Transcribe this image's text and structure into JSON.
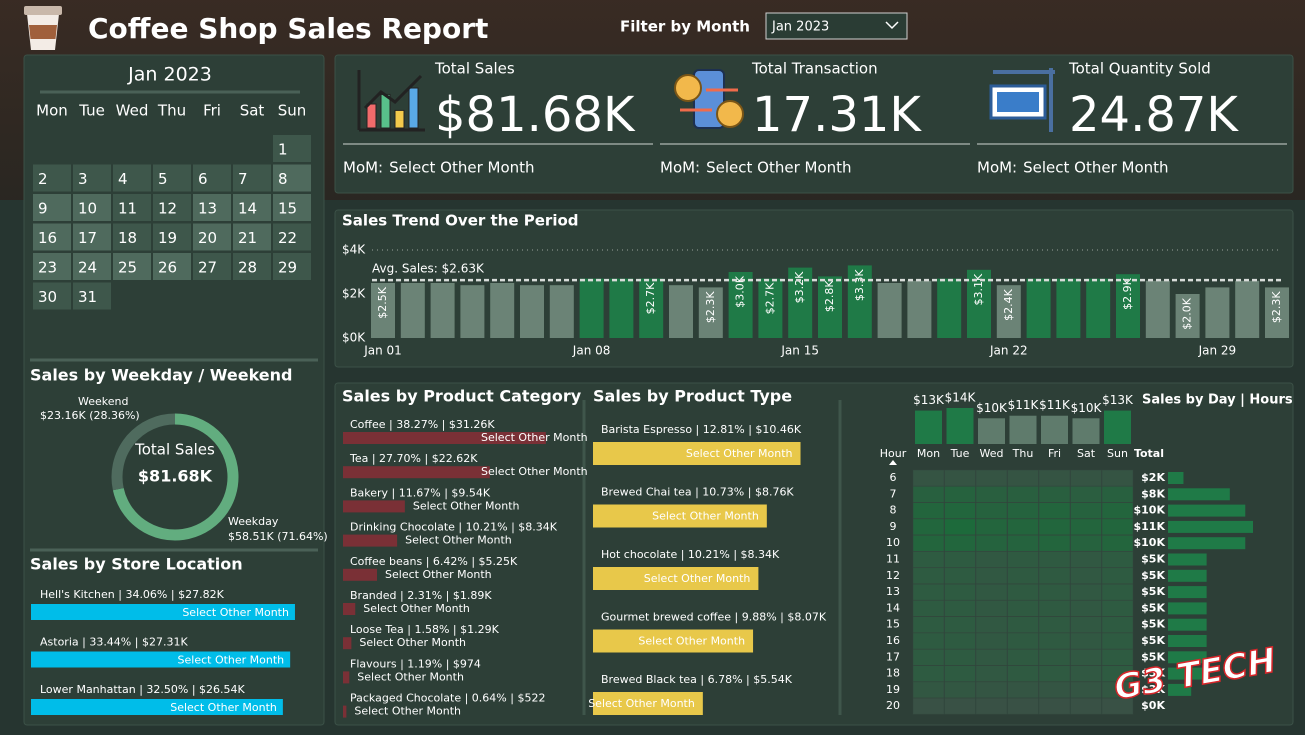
{
  "header": {
    "title": "Coffee Shop Sales Report",
    "filter_label": "Filter by Month",
    "filter_value": "Jan 2023"
  },
  "calendar": {
    "title": "Jan 2023",
    "weekdays": [
      "Mon",
      "Tue",
      "Wed",
      "Thu",
      "Fri",
      "Sat",
      "Sun"
    ],
    "days": [
      1,
      2,
      3,
      4,
      5,
      6,
      7,
      8,
      9,
      10,
      11,
      12,
      13,
      14,
      15,
      16,
      17,
      18,
      19,
      20,
      21,
      22,
      23,
      24,
      25,
      26,
      27,
      28,
      29,
      30,
      31
    ]
  },
  "kpis": [
    {
      "label": "Total Sales",
      "value": "$81.68K",
      "mom_label": "MoM:",
      "mom_value": "Select Other Month"
    },
    {
      "label": "Total Transaction",
      "value": "17.31K",
      "mom_label": "MoM:",
      "mom_value": "Select Other Month"
    },
    {
      "label": "Total Quantity Sold",
      "value": "24.87K",
      "mom_label": "MoM:",
      "mom_value": "Select Other Month"
    }
  ],
  "trend": {
    "title": "Sales Trend Over the Period",
    "categories": [
      "Jan 01",
      null,
      null,
      null,
      null,
      null,
      null,
      "Jan 08",
      null,
      null,
      null,
      null,
      null,
      null,
      "Jan 15",
      null,
      null,
      null,
      null,
      null,
      null,
      "Jan 22",
      null,
      null,
      null,
      null,
      null,
      null,
      "Jan 29",
      null,
      null
    ],
    "values": [
      2500,
      2500,
      2500,
      2400,
      2500,
      2400,
      2400,
      2700,
      2700,
      2700,
      2400,
      2300,
      3000,
      2700,
      3200,
      2800,
      3300,
      2500,
      2600,
      2700,
      3100,
      2400,
      2700,
      2700,
      2700,
      2900,
      2600,
      2000,
      2300,
      2600,
      2300
    ],
    "value_labels": [
      "$2.5K",
      null,
      null,
      null,
      null,
      null,
      null,
      null,
      null,
      "$2.7K",
      null,
      "$2.3K",
      "$3.0K",
      "$2.7K",
      "$3.2K",
      "$2.8K",
      "$3.3K",
      null,
      null,
      null,
      "$3.1K",
      "$2.4K",
      null,
      null,
      null,
      "$2.9K",
      null,
      "$2.0K",
      null,
      null,
      "$2.3K"
    ],
    "average": {
      "value": 2630,
      "label": "Avg. Sales: $2.63K"
    },
    "ylim": [
      0,
      4000
    ],
    "yticks": [
      {
        "value": 0,
        "label": "$0K"
      },
      {
        "value": 2000,
        "label": "$2K"
      },
      {
        "value": 4000,
        "label": "$4K"
      }
    ],
    "above_color": "#1f7a47",
    "below_color": "#6b8376"
  },
  "weekday_weekend": {
    "title": "Sales by Weekday / Weekend",
    "center_label": "Total Sales",
    "center_value": "$81.68K",
    "segments": [
      {
        "name": "Weekend",
        "label": "$23.16K (28.36%)",
        "value": 28.36,
        "color": "#4f6b5e"
      },
      {
        "name": "Weekday",
        "label": "$58.51K (71.64%)",
        "value": 71.64,
        "color": "#62ad7f"
      }
    ]
  },
  "store_location": {
    "title": "Sales by Store Location",
    "color": "#00bde9",
    "note": "Select Other Month",
    "items": [
      {
        "label": "Hell's Kitchen | 34.06% | $27.82K",
        "value": 34.06
      },
      {
        "label": "Astoria | 33.44% | $27.31K",
        "value": 33.44
      },
      {
        "label": "Lower Manhattan | 32.50% | $26.54K",
        "value": 32.5
      }
    ]
  },
  "product_category": {
    "title": "Sales by Product Category",
    "color": "#7a3036",
    "note": "Select Other Month",
    "items": [
      {
        "label": "Coffee | 38.27% | $31.26K",
        "value": 38.27
      },
      {
        "label": "Tea | 27.70% | $22.62K",
        "value": 27.7
      },
      {
        "label": "Bakery | 11.67% | $9.54K",
        "value": 11.67
      },
      {
        "label": "Drinking Chocolate | 10.21% | $8.34K",
        "value": 10.21
      },
      {
        "label": "Coffee beans | 6.42% | $5.25K",
        "value": 6.42
      },
      {
        "label": "Branded | 2.31% | $1.89K",
        "value": 2.31
      },
      {
        "label": "Loose Tea | 1.58% | $1.29K",
        "value": 1.58
      },
      {
        "label": "Flavours | 1.19% | $974",
        "value": 1.19
      },
      {
        "label": "Packaged Chocolate | 0.64% | $522",
        "value": 0.64
      }
    ]
  },
  "product_type": {
    "title": "Sales by Product Type",
    "color": "#e8c84a",
    "note": "Select Other Month",
    "items": [
      {
        "label": "Barista Espresso | 12.81% | $10.46K",
        "value": 12.81
      },
      {
        "label": "Brewed Chai tea | 10.73% | $8.76K",
        "value": 10.73
      },
      {
        "label": "Hot chocolate | 10.21% | $8.34K",
        "value": 10.21
      },
      {
        "label": "Gourmet brewed coffee | 9.88% | $8.07K",
        "value": 9.88
      },
      {
        "label": "Brewed Black tea | 6.78% | $5.54K",
        "value": 6.78
      }
    ]
  },
  "day_hours": {
    "title": "Sales by Day | Hours",
    "hour_header": "Hour",
    "total_header": "Total",
    "days": [
      "Mon",
      "Tue",
      "Wed",
      "Thu",
      "Fri",
      "Sat",
      "Sun"
    ],
    "day_totals": [
      13000,
      14000,
      10000,
      11000,
      11000,
      10000,
      13000
    ],
    "day_total_labels": [
      "$13K",
      "$14K",
      "$10K",
      "$11K",
      "$11K",
      "$10K",
      "$13K"
    ],
    "hours": [
      6,
      7,
      8,
      9,
      10,
      11,
      12,
      13,
      14,
      15,
      16,
      17,
      18,
      19,
      20
    ],
    "hour_totals": [
      2000,
      8000,
      10000,
      11000,
      10000,
      5000,
      5000,
      5000,
      5000,
      5000,
      5000,
      5000,
      5000,
      3000,
      0
    ],
    "hour_total_labels": [
      "$2K",
      "$8K",
      "$10K",
      "$11K",
      "$10K",
      "$5K",
      "$5K",
      "$5K",
      "$5K",
      "$5K",
      "$5K",
      "$5K",
      "$5K",
      "$3K",
      "$0K"
    ],
    "cells": [
      [
        300,
        300,
        300,
        300,
        300,
        300,
        300
      ],
      [
        1200,
        1300,
        1100,
        1100,
        1100,
        1000,
        1200
      ],
      [
        1500,
        1600,
        1300,
        1400,
        1500,
        1300,
        1500
      ],
      [
        1600,
        1900,
        1500,
        1500,
        1600,
        1500,
        1600
      ],
      [
        1500,
        1600,
        1400,
        1400,
        1500,
        1300,
        1500
      ],
      [
        800,
        800,
        600,
        700,
        700,
        600,
        800
      ],
      [
        800,
        800,
        600,
        700,
        700,
        600,
        800
      ],
      [
        800,
        800,
        600,
        700,
        700,
        600,
        800
      ],
      [
        800,
        800,
        600,
        700,
        700,
        600,
        800
      ],
      [
        800,
        800,
        600,
        700,
        700,
        600,
        800
      ],
      [
        800,
        800,
        600,
        700,
        700,
        600,
        800
      ],
      [
        800,
        800,
        600,
        700,
        700,
        600,
        800
      ],
      [
        800,
        800,
        600,
        700,
        700,
        600,
        800
      ],
      [
        500,
        500,
        400,
        400,
        400,
        400,
        500
      ],
      [
        50,
        50,
        50,
        50,
        50,
        50,
        50
      ]
    ],
    "above_color": "#1f7a47",
    "below_color": "#5f7b6c",
    "low_color": "#3a5045",
    "high_color": "#1d6a3b"
  },
  "watermark": "G3 TECH"
}
